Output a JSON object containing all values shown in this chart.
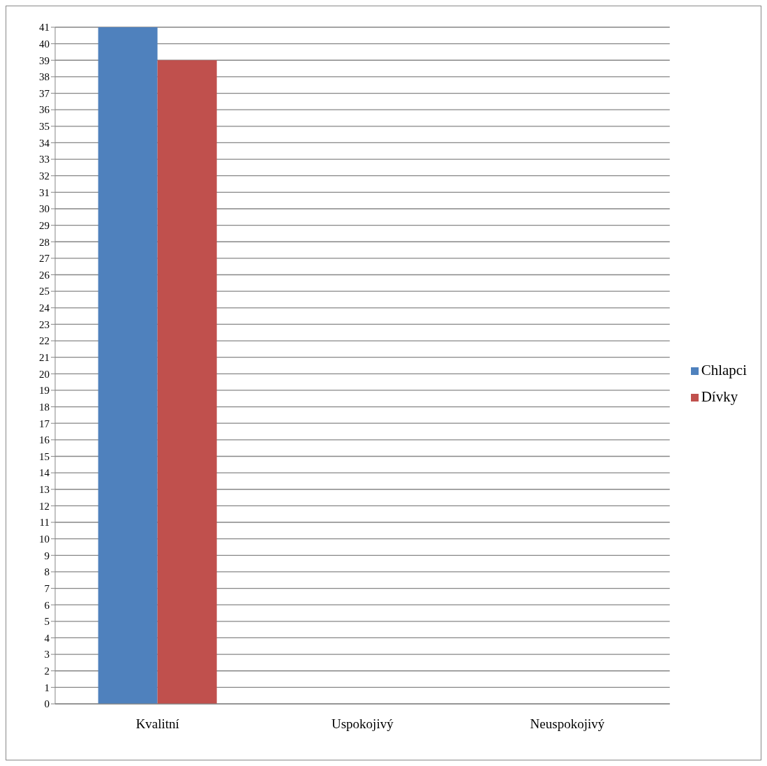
{
  "chart_data": {
    "type": "bar",
    "categories": [
      "Kvalitní",
      "Uspokojivý",
      "Neuspokojivý"
    ],
    "series": [
      {
        "name": "Chlapci",
        "color": "#4f81bd",
        "values": [
          41,
          0,
          0
        ]
      },
      {
        "name": "Dívky",
        "color": "#c0504d",
        "values": [
          39,
          0,
          0
        ]
      }
    ],
    "ylim": [
      0,
      41
    ],
    "yticks": [
      0,
      1,
      2,
      3,
      4,
      5,
      6,
      7,
      8,
      9,
      10,
      11,
      12,
      13,
      14,
      15,
      16,
      17,
      18,
      19,
      20,
      21,
      22,
      23,
      24,
      25,
      26,
      27,
      28,
      29,
      30,
      31,
      32,
      33,
      34,
      35,
      36,
      37,
      38,
      39,
      40,
      41
    ],
    "grid": "y",
    "legend": "right"
  }
}
